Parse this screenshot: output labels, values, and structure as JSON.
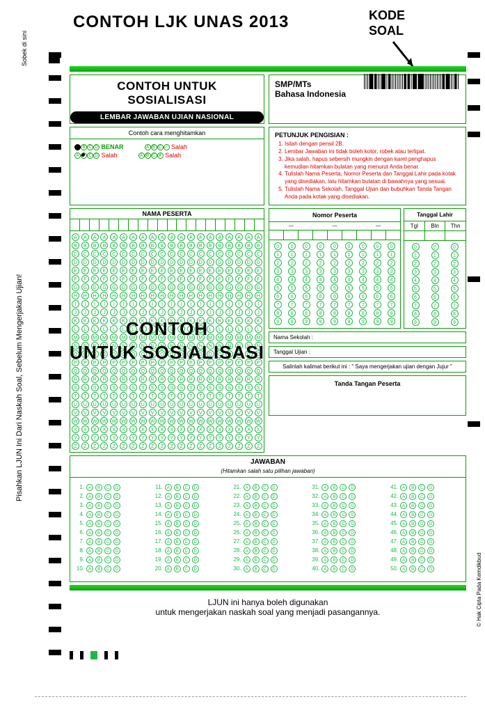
{
  "title": "CONTOH LJK UNAS 2013",
  "kode_soal": "KODE\nSOAL",
  "vtext1": "Sobek di sini",
  "vtext2": "Pisahkan LJUN Ini Dari Naskah Soal, Sebelum Mengerjakan Ujian!",
  "vtext3": "© Hak Cipta Pada Kemdikbud",
  "sosial": {
    "l1": "CONTOH UNTUK",
    "l2": "SOSIALISASI",
    "band": "LEMBAR JAWABAN UJIAN NASIONAL"
  },
  "info": {
    "l1": "SMP/MTs",
    "l2": "Bahasa Indonesia"
  },
  "contoh": {
    "hdr": "Contoh cara menghitamkan",
    "benar": "BENAR",
    "salah": "Salah"
  },
  "petunjuk": {
    "title": "PETUNJUK PENGISIAN :",
    "items": [
      "Isilah dengan pensil 2B.",
      "Lembar Jawaban ini tidak boleh kotor, robek atau terlipat.",
      "Jika salah, hapus sebersih mungkin dengan karet penghapus kemudian hitamkan bulatan yang menurut Anda benar.",
      "Tulislah Nama Peserta, Nomor Peserta dan Tanggal Lahir pada kotak yang disediakan, lalu hitamkan bulatan di bawahnya yang sesuai.",
      "Tulislah Nama Sekolah, Tanggal Ujian dan bubuhkan Tanda Tangan Anda pada kotak yang disediakan."
    ]
  },
  "nama": {
    "hdr": "NAMA PESERTA",
    "letters": "ABCDEFGHIJKLMNOPQRSTUVWXYZ",
    "cols": 20
  },
  "watermark": {
    "l1": "CONTOH",
    "l2": "UNTUK SOSIALISASI"
  },
  "nomor": {
    "hdr": "Nomor Peserta",
    "cols": 9,
    "digits": "0123456789",
    "dashcols": [
      1,
      4,
      7
    ]
  },
  "tgl": {
    "hdr": "Tanggal Lahir",
    "sub": [
      "Tgl",
      "Bln",
      "Thn"
    ]
  },
  "fields": {
    "sekolah": "Nama Sekolah :",
    "tglu": "Tanggal Ujian    :",
    "salin": "Salinlah kalimat berikut ini : \" Saya mengerjakan ujian dengan Jujur \"",
    "tanda": "Tanda Tangan Peserta"
  },
  "jawaban": {
    "hdr": "JAWABAN",
    "sub": "(Hitamkan salah satu pilihan jawaban)",
    "count": 50,
    "opts": [
      "A",
      "B",
      "C",
      "D"
    ]
  },
  "footer": {
    "l1": "LJUN ini hanya boleh digunakan",
    "l2": "untuk mengerjakan naskah soal yang menjadi pasangannya."
  },
  "colors": {
    "green": "#0a9c0a",
    "lightgreen": "#1fb848",
    "red": "#d00000"
  }
}
